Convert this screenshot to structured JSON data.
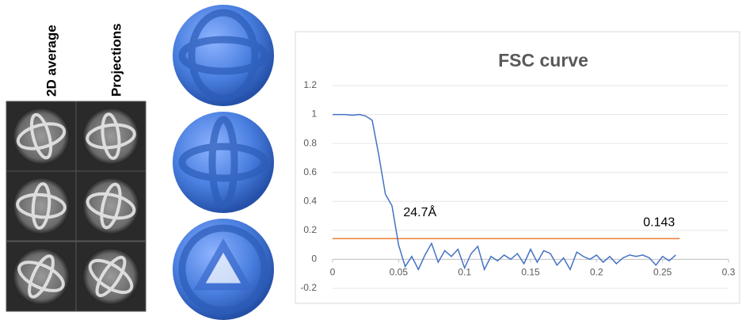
{
  "panel_labels": [
    "2D average",
    "Projections"
  ],
  "chart_data": {
    "type": "line",
    "title": "FSC curve",
    "color": "#4472c4",
    "x": [
      0,
      0.005,
      0.01,
      0.015,
      0.02,
      0.025,
      0.03,
      0.035,
      0.04,
      0.045,
      0.05,
      0.055,
      0.06,
      0.065,
      0.07,
      0.075,
      0.08,
      0.085,
      0.09,
      0.095,
      0.1,
      0.105,
      0.11,
      0.115,
      0.12,
      0.125,
      0.13,
      0.135,
      0.14,
      0.145,
      0.15,
      0.155,
      0.16,
      0.165,
      0.17,
      0.175,
      0.18,
      0.185,
      0.19,
      0.195,
      0.2,
      0.205,
      0.21,
      0.215,
      0.22,
      0.225,
      0.23,
      0.235,
      0.24,
      0.245,
      0.25,
      0.255,
      0.26
    ],
    "values": [
      1.0,
      1.0,
      1.0,
      0.995,
      1.0,
      0.99,
      0.96,
      0.72,
      0.45,
      0.37,
      0.1,
      -0.05,
      0.02,
      -0.07,
      0.03,
      0.11,
      -0.02,
      0.06,
      0.02,
      0.07,
      -0.06,
      0.04,
      0.09,
      -0.07,
      0.02,
      -0.01,
      0.03,
      0.0,
      0.04,
      -0.03,
      0.07,
      -0.02,
      0.06,
      0.04,
      -0.04,
      0.01,
      -0.07,
      0.05,
      0.02,
      0.0,
      0.03,
      -0.02,
      0.02,
      -0.03,
      0.01,
      0.03,
      0.02,
      0.03,
      0.01,
      -0.04,
      0.02,
      -0.01,
      0.03
    ],
    "reference_line": {
      "value": 0.143,
      "color": "#ed7d31",
      "x": [
        0,
        0.263
      ]
    },
    "annotations": [
      {
        "text": "24.7Å",
        "x": 0.05,
        "y": 0.32
      }
    ],
    "xlim": [
      0,
      0.3
    ],
    "xticks": [
      0,
      0.05,
      0.1,
      0.15,
      0.2,
      0.25,
      0.3
    ],
    "ylim": [
      -0.2,
      1.2
    ],
    "yticks": [
      -0.2,
      0,
      0.2,
      0.4,
      0.6,
      0.8,
      1,
      1.2
    ],
    "grid": true
  }
}
